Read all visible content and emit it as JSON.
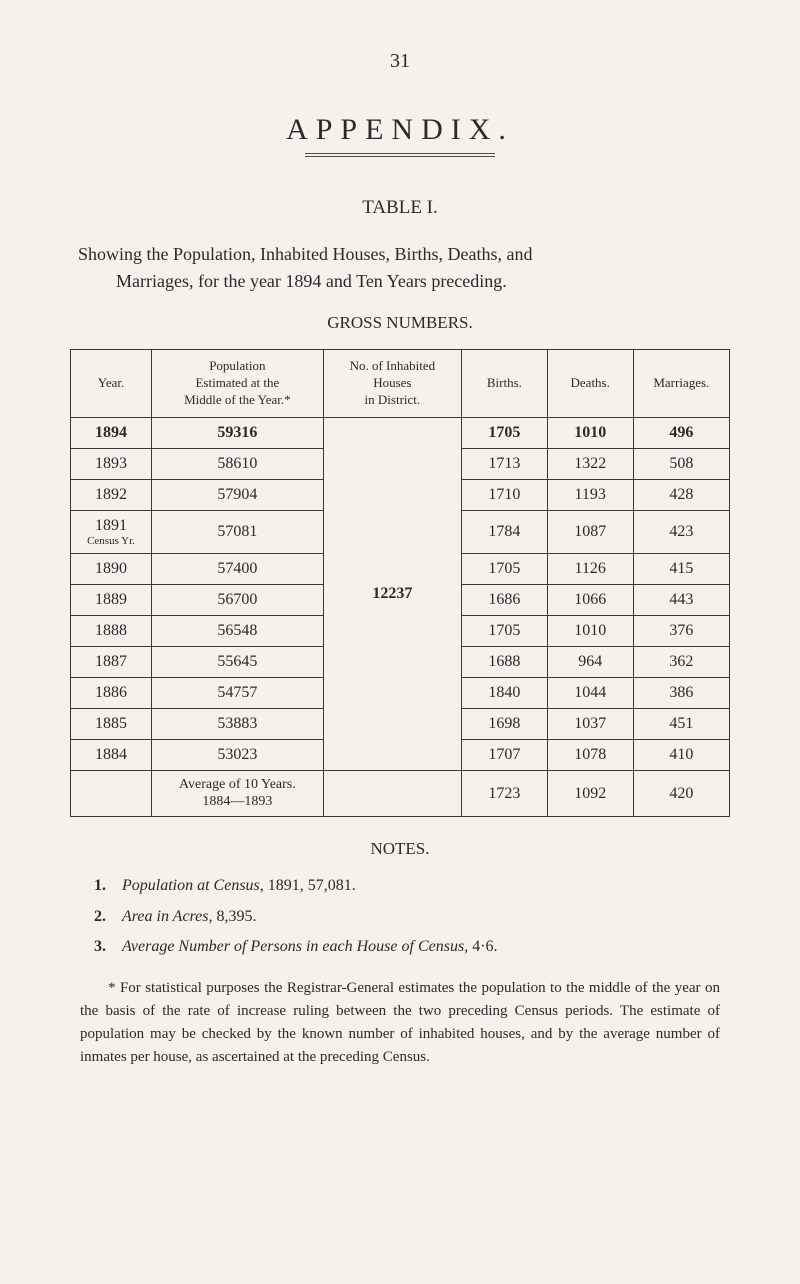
{
  "page_number": "31",
  "appendix_title": "APPENDIX.",
  "table_label": "TABLE I.",
  "intro_line1": "Showing the Population, Inhabited Houses, Births, Deaths, and",
  "intro_line2": "Marriages, for the year 1894 and Ten Years preceding.",
  "subheading": "GROSS NUMBERS.",
  "columns": {
    "year": "Year.",
    "population": "Population\nEstimated at the\nMiddle of the Year.*",
    "houses": "No. of Inhabited\nHouses\nin District.",
    "births": "Births.",
    "deaths": "Deaths.",
    "marriages": "Marriages."
  },
  "houses_value": "12237",
  "rows": [
    {
      "year": "1894",
      "pop": "59316",
      "births": "1705",
      "deaths": "1010",
      "marr": "496",
      "bold": true
    },
    {
      "year": "1893",
      "pop": "58610",
      "births": "1713",
      "deaths": "1322",
      "marr": "508"
    },
    {
      "year": "1892",
      "pop": "57904",
      "births": "1710",
      "deaths": "1193",
      "marr": "428"
    },
    {
      "year": "1891",
      "census": "Census Yr.",
      "pop": "57081",
      "births": "1784",
      "deaths": "1087",
      "marr": "423"
    },
    {
      "year": "1890",
      "pop": "57400",
      "births": "1705",
      "deaths": "1126",
      "marr": "415"
    },
    {
      "year": "1889",
      "pop": "56700",
      "births": "1686",
      "deaths": "1066",
      "marr": "443"
    },
    {
      "year": "1888",
      "pop": "56548",
      "births": "1705",
      "deaths": "1010",
      "marr": "376"
    },
    {
      "year": "1887",
      "pop": "55645",
      "births": "1688",
      "deaths": "964",
      "marr": "362"
    },
    {
      "year": "1886",
      "pop": "54757",
      "births": "1840",
      "deaths": "1044",
      "marr": "386"
    },
    {
      "year": "1885",
      "pop": "53883",
      "births": "1698",
      "deaths": "1037",
      "marr": "451"
    },
    {
      "year": "1884",
      "pop": "53023",
      "births": "1707",
      "deaths": "1078",
      "marr": "410"
    }
  ],
  "average_row": {
    "label_l1": "Average of 10 Years.",
    "label_l2": "1884—1893",
    "births": "1723",
    "deaths": "1092",
    "marr": "420"
  },
  "notes_heading": "NOTES.",
  "notes": [
    {
      "n": "1.",
      "text_a": "Population at Census,",
      "text_b": " 1891, 57,081."
    },
    {
      "n": "2.",
      "text_a": "Area in Acres,",
      "text_b": " 8,395."
    },
    {
      "n": "3.",
      "text_a": "Average Number of Persons in each House of Census,",
      "text_b": " 4·6."
    }
  ],
  "footnote": "* For statistical purposes the Registrar-General estimates the population to the middle of the year on the basis of the rate of increase ruling between the two preceding Census periods. The estimate of population may be checked by the known number of inhabited houses, and by the average number of inmates per house, as ascertained at the preceding Census."
}
